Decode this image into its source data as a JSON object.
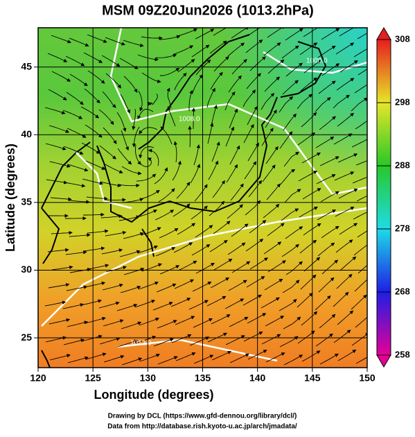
{
  "chart_data": {
    "type": "map",
    "title": "MSM 09Z20Jun2026 (1013.2hPa)",
    "x_label": "Longitude (degrees)",
    "y_label": "Latitude  (degrees)",
    "xlim": [
      120,
      150
    ],
    "xticks": [
      120,
      125,
      130,
      135,
      140,
      145,
      150
    ],
    "ylim": [
      22.8,
      47.9
    ],
    "yticks": [
      25,
      30,
      35,
      40,
      45
    ],
    "grid": true,
    "contour_labels": [
      "1000.0",
      "1008.0",
      "1012.0"
    ],
    "colorbar": {
      "lim": [
        258,
        308
      ],
      "ticks": [
        258,
        268,
        278,
        288,
        298,
        308
      ]
    },
    "footnotes": [
      "Drawing by DCL (https://www.gfd-dennou.org/library/dcl/)",
      "Data from http://database.rish.kyoto-u.ac.jp/arch/jmadata/"
    ]
  }
}
